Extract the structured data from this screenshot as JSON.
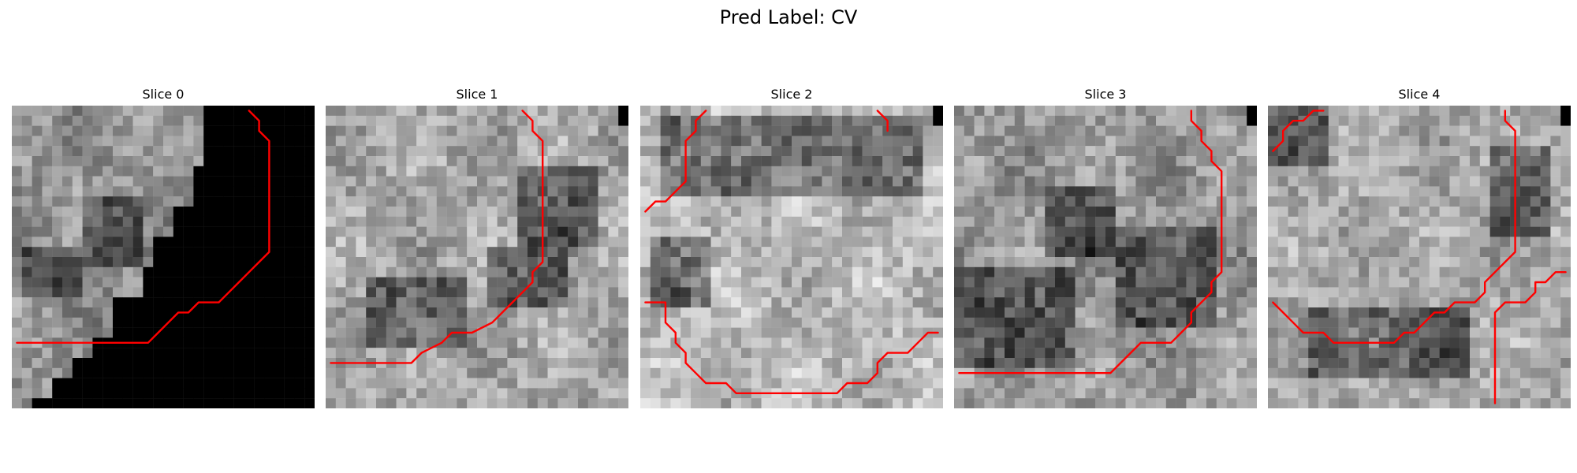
{
  "figure": {
    "title": "Pred Label: CV"
  },
  "slices": [
    {
      "title": "Slice 0",
      "seed": 11,
      "base": 0.58,
      "blackout": "lower-right-staircase",
      "contours": [
        [
          [
            23,
            0
          ],
          [
            24,
            1
          ],
          [
            24,
            2
          ],
          [
            25,
            3
          ],
          [
            25,
            4
          ],
          [
            25,
            5
          ],
          [
            25,
            6
          ],
          [
            25,
            7
          ],
          [
            25,
            8
          ],
          [
            25,
            9
          ],
          [
            25,
            10
          ],
          [
            25,
            11
          ],
          [
            25,
            12
          ],
          [
            25,
            13
          ],
          [
            25,
            14
          ],
          [
            24,
            15
          ],
          [
            23,
            16
          ],
          [
            22,
            17
          ],
          [
            21,
            18
          ],
          [
            20,
            19
          ],
          [
            18,
            19
          ],
          [
            17,
            20
          ],
          [
            16,
            20
          ],
          [
            15,
            21
          ],
          [
            14,
            22
          ],
          [
            13,
            23
          ],
          [
            12,
            23
          ],
          [
            0,
            23
          ]
        ]
      ],
      "dark_regions": [
        [
          1,
          14,
          6,
          5
        ],
        [
          7,
          9,
          6,
          7
        ]
      ]
    },
    {
      "title": "Slice 1",
      "seed": 23,
      "base": 0.65,
      "black_corner": true,
      "contours": [
        [
          [
            19,
            0
          ],
          [
            20,
            1
          ],
          [
            20,
            2
          ],
          [
            21,
            3
          ],
          [
            21,
            4
          ],
          [
            21,
            5
          ],
          [
            21,
            6
          ],
          [
            21,
            7
          ],
          [
            21,
            8
          ],
          [
            21,
            9
          ],
          [
            21,
            10
          ],
          [
            21,
            11
          ],
          [
            21,
            12
          ],
          [
            21,
            13
          ],
          [
            21,
            14
          ],
          [
            21,
            15
          ],
          [
            20,
            16
          ],
          [
            20,
            17
          ],
          [
            19,
            18
          ],
          [
            18,
            19
          ],
          [
            17,
            20
          ],
          [
            16,
            21
          ],
          [
            14,
            22
          ],
          [
            12,
            22
          ],
          [
            11,
            23
          ],
          [
            9,
            24
          ],
          [
            8,
            25
          ],
          [
            0,
            25
          ]
        ]
      ],
      "dark_regions": [
        [
          16,
          14,
          8,
          6
        ],
        [
          4,
          17,
          10,
          7
        ],
        [
          19,
          6,
          8,
          8
        ]
      ]
    },
    {
      "title": "Slice 2",
      "seed": 37,
      "base": 0.72,
      "black_corner": true,
      "contours": [
        [
          [
            6,
            0
          ],
          [
            5,
            1
          ],
          [
            5,
            2
          ],
          [
            4,
            3
          ],
          [
            4,
            4
          ],
          [
            4,
            5
          ],
          [
            4,
            6
          ],
          [
            4,
            7
          ],
          [
            3,
            8
          ],
          [
            2,
            9
          ],
          [
            1,
            9
          ],
          [
            0,
            10
          ]
        ],
        [
          [
            23,
            0
          ],
          [
            24,
            1
          ],
          [
            24,
            2
          ]
        ],
        [
          [
            0,
            19
          ],
          [
            1,
            19
          ],
          [
            2,
            19
          ],
          [
            2,
            20
          ],
          [
            2,
            21
          ],
          [
            3,
            22
          ],
          [
            3,
            23
          ],
          [
            4,
            24
          ],
          [
            4,
            25
          ],
          [
            5,
            26
          ],
          [
            6,
            27
          ],
          [
            8,
            27
          ],
          [
            9,
            28
          ],
          [
            19,
            28
          ],
          [
            20,
            27
          ],
          [
            22,
            27
          ],
          [
            23,
            26
          ],
          [
            23,
            25
          ],
          [
            24,
            24
          ],
          [
            26,
            24
          ],
          [
            27,
            23
          ],
          [
            28,
            22
          ],
          [
            29,
            22
          ]
        ]
      ],
      "dark_regions": [
        [
          2,
          1,
          26,
          8
        ],
        [
          1,
          13,
          6,
          7
        ]
      ]
    },
    {
      "title": "Slice 3",
      "seed": 53,
      "base": 0.6,
      "black_corner": true,
      "contours": [
        [
          [
            23,
            0
          ],
          [
            23,
            1
          ],
          [
            24,
            2
          ],
          [
            24,
            3
          ],
          [
            25,
            4
          ],
          [
            25,
            5
          ],
          [
            26,
            6
          ],
          [
            26,
            7
          ],
          [
            26,
            8
          ],
          [
            26,
            9
          ],
          [
            26,
            10
          ],
          [
            26,
            11
          ],
          [
            26,
            12
          ],
          [
            26,
            13
          ],
          [
            26,
            14
          ],
          [
            26,
            15
          ],
          [
            26,
            16
          ],
          [
            25,
            17
          ],
          [
            25,
            18
          ],
          [
            24,
            19
          ],
          [
            23,
            20
          ],
          [
            23,
            21
          ],
          [
            22,
            22
          ],
          [
            21,
            23
          ],
          [
            18,
            23
          ],
          [
            17,
            24
          ],
          [
            16,
            25
          ],
          [
            15,
            26
          ],
          [
            0,
            26
          ]
        ]
      ],
      "dark_regions": [
        [
          16,
          12,
          10,
          10
        ],
        [
          0,
          16,
          12,
          10
        ],
        [
          9,
          8,
          7,
          7
        ]
      ]
    },
    {
      "title": "Slice 4",
      "seed": 71,
      "base": 0.66,
      "black_corner": true,
      "contours": [
        [
          [
            5,
            0
          ],
          [
            4,
            0
          ],
          [
            3,
            1
          ],
          [
            2,
            1
          ],
          [
            1,
            2
          ],
          [
            1,
            3
          ],
          [
            0,
            4
          ]
        ],
        [
          [
            23,
            0
          ],
          [
            23,
            1
          ],
          [
            24,
            2
          ],
          [
            24,
            3
          ],
          [
            24,
            4
          ],
          [
            24,
            5
          ],
          [
            24,
            6
          ],
          [
            24,
            7
          ],
          [
            24,
            8
          ],
          [
            24,
            9
          ],
          [
            24,
            10
          ],
          [
            24,
            11
          ],
          [
            24,
            12
          ],
          [
            24,
            13
          ],
          [
            24,
            14
          ],
          [
            23,
            15
          ],
          [
            22,
            16
          ],
          [
            21,
            17
          ],
          [
            21,
            18
          ],
          [
            20,
            19
          ],
          [
            18,
            19
          ],
          [
            17,
            20
          ],
          [
            16,
            20
          ],
          [
            15,
            21
          ],
          [
            14,
            22
          ],
          [
            13,
            22
          ],
          [
            12,
            23
          ],
          [
            9,
            23
          ],
          [
            7,
            23
          ],
          [
            6,
            23
          ],
          [
            5,
            22
          ],
          [
            3,
            22
          ],
          [
            2,
            21
          ],
          [
            1,
            20
          ],
          [
            0,
            19
          ]
        ],
        [
          [
            29,
            16
          ],
          [
            28,
            16
          ],
          [
            27,
            17
          ],
          [
            26,
            17
          ],
          [
            26,
            18
          ],
          [
            25,
            19
          ],
          [
            23,
            19
          ],
          [
            22,
            20
          ],
          [
            22,
            21
          ],
          [
            22,
            22
          ],
          [
            22,
            23
          ],
          [
            22,
            24
          ],
          [
            22,
            25
          ],
          [
            22,
            26
          ],
          [
            22,
            27
          ],
          [
            22,
            28
          ],
          [
            22,
            29
          ]
        ]
      ],
      "dark_regions": [
        [
          4,
          20,
          16,
          7
        ],
        [
          0,
          0,
          6,
          6
        ],
        [
          22,
          4,
          6,
          9
        ]
      ]
    }
  ]
}
